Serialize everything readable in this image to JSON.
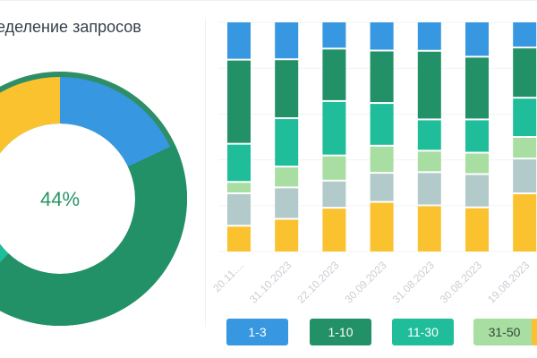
{
  "title": "ределение запросов",
  "donut": {
    "center_label": "44%",
    "colors": {
      "accent": "#2a9466",
      "track": "#2e8f66"
    }
  },
  "legend": [
    {
      "label": "1-3",
      "color": "#3797e0"
    },
    {
      "label": "1-10",
      "color": "#229167"
    },
    {
      "label": "11-30",
      "color": "#1fbd9a"
    },
    {
      "label": "31-50",
      "color": "#a8dea1"
    }
  ],
  "chart_data": [
    {
      "type": "pie",
      "variant": "donut",
      "center_label": "44%",
      "slices": [
        {
          "value": 18,
          "color": "#3797e0"
        },
        {
          "value": 44,
          "color": "#229167"
        },
        {
          "value": 18,
          "color": "#1fbd9a"
        },
        {
          "value": 20,
          "color": "#fbc230"
        }
      ]
    },
    {
      "type": "bar",
      "stacked": true,
      "normalized": true,
      "categories": [
        "20.11....",
        "31.10.2023",
        "22.10.2023",
        "30.09.2023",
        "31.08.2023",
        "30.08.2023",
        "19.08.2023"
      ],
      "series": [
        {
          "color": "#fbc230",
          "values": [
            13,
            15,
            22,
            25,
            23,
            22,
            26
          ]
        },
        {
          "color": "#b2cac9",
          "values": [
            16,
            14,
            13,
            14,
            16,
            16,
            15
          ]
        },
        {
          "color": "#a8dea1",
          "values": [
            5,
            9,
            12,
            13,
            10,
            10,
            9
          ]
        },
        {
          "color": "#1fbd9a",
          "values": [
            19,
            22,
            27,
            21,
            15,
            16,
            17
          ]
        },
        {
          "color": "#229167",
          "values": [
            43,
            27,
            26,
            26,
            34,
            31,
            22
          ]
        },
        {
          "color": "#3797e0",
          "values": [
            19,
            17,
            13,
            14,
            14,
            17,
            11
          ]
        }
      ]
    }
  ]
}
